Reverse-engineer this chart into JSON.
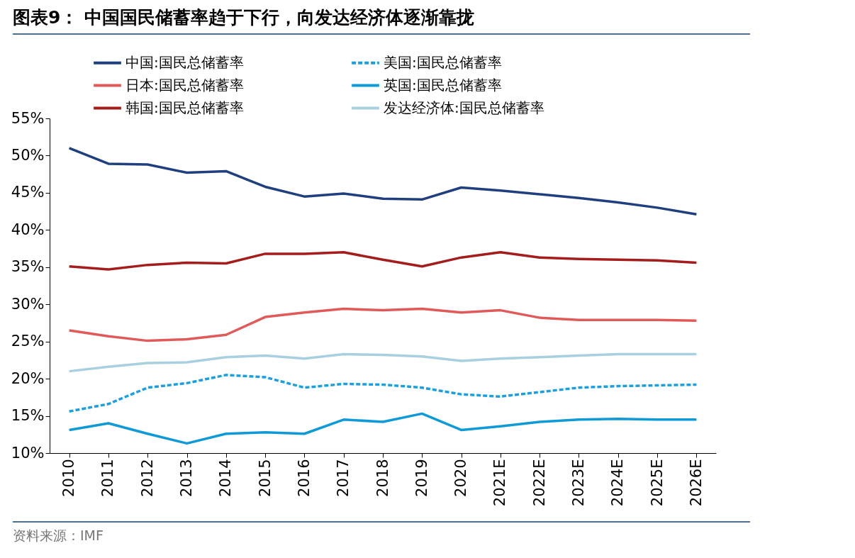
{
  "chart_data": {
    "type": "line",
    "title": "图表9：  中国国民储蓄率趋于下行，向发达经济体逐渐靠拢",
    "categories": [
      "2010",
      "2011",
      "2012",
      "2013",
      "2014",
      "2015",
      "2016",
      "2017",
      "2018",
      "2019",
      "2020",
      "2021E",
      "2022E",
      "2023E",
      "2024E",
      "2025E",
      "2026E"
    ],
    "series": [
      {
        "name": "中国:国民总储蓄率",
        "color": "#1f3f7f",
        "line_style": "solid",
        "values": [
          51.0,
          48.9,
          48.8,
          47.7,
          47.9,
          45.8,
          44.5,
          44.9,
          44.2,
          44.1,
          45.7,
          45.3,
          44.8,
          44.3,
          43.7,
          43.0,
          42.1
        ]
      },
      {
        "name": "美国:国民总储蓄率",
        "color": "#1aa0e0",
        "line_style": "dashed",
        "values": [
          15.6,
          16.6,
          18.8,
          19.4,
          20.5,
          20.2,
          18.8,
          19.3,
          19.2,
          18.8,
          17.9,
          17.6,
          18.2,
          18.8,
          19.0,
          19.1,
          19.2
        ]
      },
      {
        "name": "日本:国民总储蓄率",
        "color": "#e05a5a",
        "line_style": "solid",
        "values": [
          26.5,
          25.7,
          25.1,
          25.3,
          25.9,
          28.3,
          28.9,
          29.4,
          29.2,
          29.4,
          28.9,
          29.2,
          28.2,
          27.9,
          27.9,
          27.9,
          27.8
        ]
      },
      {
        "name": "英国:国民总储蓄率",
        "color": "#0e9ad7",
        "line_style": "solid",
        "values": [
          13.1,
          14.0,
          12.6,
          11.3,
          12.6,
          12.8,
          12.6,
          14.5,
          14.2,
          15.3,
          13.1,
          13.6,
          14.2,
          14.5,
          14.6,
          14.5,
          14.5
        ]
      },
      {
        "name": "韩国:国民总储蓄率",
        "color": "#a51c1c",
        "line_style": "solid",
        "values": [
          35.1,
          34.7,
          35.3,
          35.6,
          35.5,
          36.8,
          36.8,
          37.0,
          36.0,
          35.1,
          36.3,
          37.0,
          36.3,
          36.1,
          36.0,
          35.9,
          35.6
        ]
      },
      {
        "name": "发达经济体:国民总储蓄率",
        "color": "#a8d0e0",
        "line_style": "solid",
        "values": [
          21.0,
          21.6,
          22.1,
          22.2,
          22.9,
          23.1,
          22.7,
          23.3,
          23.2,
          23.0,
          22.4,
          22.7,
          22.9,
          23.1,
          23.3,
          23.3,
          23.3
        ]
      }
    ],
    "ylim": [
      10,
      55
    ],
    "yticks": [
      {
        "value": 10,
        "label": "10%"
      },
      {
        "value": 15,
        "label": "15%"
      },
      {
        "value": 20,
        "label": "20%"
      },
      {
        "value": 25,
        "label": "25%"
      },
      {
        "value": 30,
        "label": "30%"
      },
      {
        "value": 35,
        "label": "35%"
      },
      {
        "value": 40,
        "label": "40%"
      },
      {
        "value": 45,
        "label": "45%"
      },
      {
        "value": 50,
        "label": "50%"
      },
      {
        "value": 55,
        "label": "55%"
      }
    ],
    "grid": false,
    "legend": "top",
    "marker": "none",
    "annotations": [
      "资料来源：IMF"
    ]
  }
}
